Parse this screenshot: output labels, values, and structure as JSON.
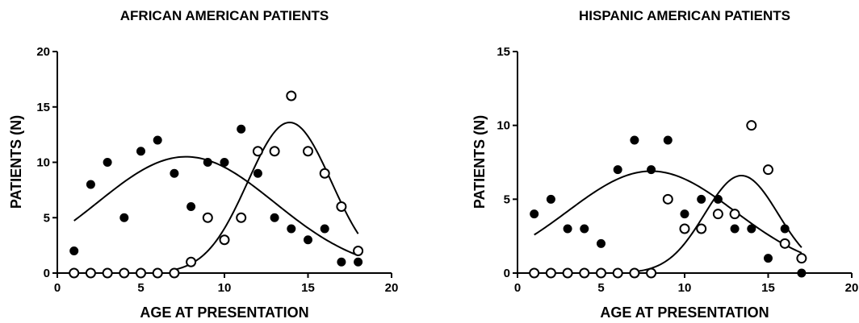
{
  "chart_data": [
    {
      "type": "scatter",
      "title": "AFRICAN AMERICAN PATIENTS",
      "xlabel": "AGE AT PRESENTATION",
      "ylabel": "PATIENTS (N)",
      "xlim": [
        0,
        20
      ],
      "ylim": [
        0,
        20
      ],
      "xticks": [
        0,
        5,
        10,
        15,
        20
      ],
      "yticks": [
        0,
        5,
        10,
        15,
        20
      ],
      "grid": false,
      "series": [
        {
          "marker": "filled-circle",
          "x": [
            1,
            2,
            3,
            4,
            5,
            6,
            7,
            8,
            9,
            10,
            11,
            12,
            13,
            14,
            15,
            16,
            17,
            18
          ],
          "y": [
            2,
            8,
            10,
            5,
            11,
            12,
            9,
            6,
            10,
            10,
            13,
            9,
            5,
            4,
            3,
            4,
            1,
            1
          ]
        },
        {
          "marker": "open-circle",
          "x": [
            1,
            2,
            3,
            4,
            5,
            6,
            7,
            8,
            9,
            10,
            11,
            12,
            13,
            14,
            15,
            16,
            17,
            18
          ],
          "y": [
            0,
            0,
            0,
            0,
            0,
            0,
            0,
            1,
            5,
            3,
            5,
            11,
            11,
            16,
            11,
            9,
            6,
            2
          ]
        }
      ],
      "fits": [
        {
          "series": 0,
          "amplitude": 10.5,
          "center": 7.7,
          "width": 5.3,
          "x_range": [
            1,
            18
          ]
        },
        {
          "series": 1,
          "amplitude": 13.6,
          "center": 13.9,
          "width": 2.5,
          "x_range": [
            7,
            18
          ]
        }
      ]
    },
    {
      "type": "scatter",
      "title": "HISPANIC AMERICAN PATIENTS",
      "xlabel": "AGE AT PRESENTATION",
      "ylabel": "PATIENTS (N)",
      "xlim": [
        0,
        20
      ],
      "ylim": [
        0,
        15
      ],
      "xticks": [
        0,
        5,
        10,
        15,
        20
      ],
      "yticks": [
        0,
        5,
        10,
        15
      ],
      "grid": false,
      "series": [
        {
          "marker": "filled-circle",
          "x": [
            1,
            2,
            3,
            4,
            5,
            6,
            7,
            8,
            9,
            10,
            11,
            12,
            13,
            14,
            15,
            16,
            17
          ],
          "y": [
            4,
            5,
            3,
            3,
            2,
            7,
            9,
            7,
            9,
            4,
            5,
            5,
            3,
            3,
            1,
            3,
            0
          ]
        },
        {
          "marker": "open-circle",
          "x": [
            1,
            2,
            3,
            4,
            5,
            6,
            7,
            8,
            9,
            10,
            11,
            12,
            13,
            14,
            15,
            16,
            17
          ],
          "y": [
            0,
            0,
            0,
            0,
            0,
            0,
            0,
            0,
            5,
            3,
            3,
            4,
            4,
            10,
            7,
            2,
            1
          ]
        }
      ],
      "fits": [
        {
          "series": 0,
          "amplitude": 6.9,
          "center": 8.0,
          "width": 5.0,
          "x_range": [
            1,
            17
          ]
        },
        {
          "series": 1,
          "amplitude": 6.6,
          "center": 13.4,
          "width": 2.2,
          "x_range": [
            7,
            17
          ]
        }
      ]
    }
  ]
}
